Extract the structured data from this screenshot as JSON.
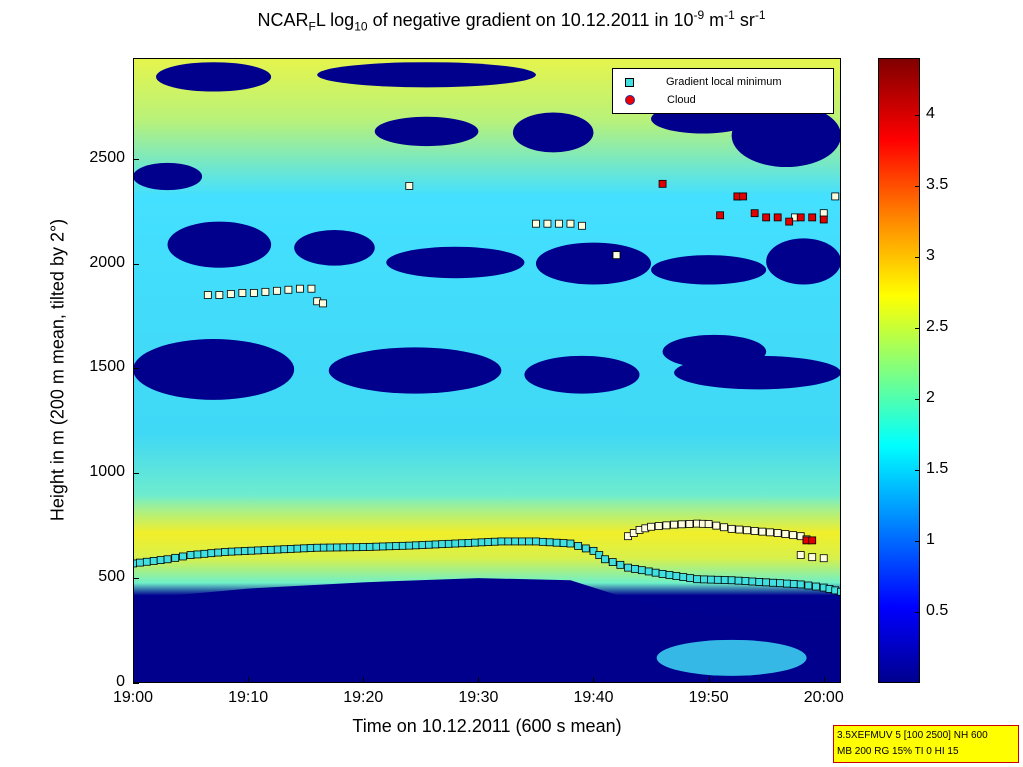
{
  "chart_data": {
    "type": "heatmap",
    "title_parts": {
      "a": "NCAR",
      "a_sub": "F",
      "b": "L log",
      "b_sub": "10",
      "c": " of negative gradient on 10.12.2011 in 10",
      "c_sup": "-9",
      "d": " m",
      "d_sup": "-1",
      "e": " sr",
      "e_sup": "-1"
    },
    "xlabel": "Time on 10.12.2011 (600 s mean)",
    "ylabel": "Height in m (200 m mean, tilted by 2°)",
    "xlim_minutes": [
      0,
      61.5
    ],
    "ylim": [
      0,
      2980
    ],
    "x_ticks": [
      {
        "label": "19:00",
        "minute": 0
      },
      {
        "label": "19:10",
        "minute": 10
      },
      {
        "label": "19:20",
        "minute": 20
      },
      {
        "label": "19:30",
        "minute": 30
      },
      {
        "label": "19:40",
        "minute": 40
      },
      {
        "label": "19:50",
        "minute": 50
      },
      {
        "label": "20:00",
        "minute": 60
      }
    ],
    "y_ticks": [
      "0",
      "500",
      "1000",
      "1500",
      "2000",
      "2500"
    ],
    "y_tick_values": [
      0,
      500,
      1000,
      1500,
      2000,
      2500
    ],
    "colorbar": {
      "range": [
        0,
        4.4
      ],
      "ticks": [
        "0.5",
        "1",
        "1.5",
        "2",
        "2.5",
        "3",
        "3.5",
        "4"
      ],
      "tick_values": [
        0.5,
        1,
        1.5,
        2,
        2.5,
        3,
        3.5,
        4
      ],
      "colors": [
        "#00008f",
        "#0000ff",
        "#0080ff",
        "#00ffff",
        "#80ff80",
        "#ffff00",
        "#ff8000",
        "#ff0000",
        "#800000"
      ]
    },
    "legend": {
      "placement": "top-right",
      "entries": [
        {
          "label": "Gradient local minimum",
          "marker": "square",
          "color": "#40e0e0"
        },
        {
          "label": "Cloud",
          "marker": "circle",
          "color": "#e00000"
        }
      ]
    },
    "low_layer": {
      "points": [
        [
          0,
          570
        ],
        [
          3,
          590
        ],
        [
          5,
          610
        ],
        [
          8,
          625
        ],
        [
          12,
          635
        ],
        [
          16,
          645
        ],
        [
          20,
          648
        ],
        [
          24,
          655
        ],
        [
          28,
          665
        ],
        [
          32,
          675
        ],
        [
          35,
          675
        ],
        [
          38,
          665
        ],
        [
          40,
          630
        ],
        [
          41,
          590
        ],
        [
          43,
          550
        ],
        [
          46,
          520
        ],
        [
          49,
          495
        ],
        [
          52,
          490
        ],
        [
          55,
          480
        ],
        [
          58,
          470
        ],
        [
          60,
          455
        ],
        [
          61.5,
          435
        ]
      ],
      "color": "#40e0e0"
    },
    "upper_layer": {
      "points": [
        [
          43,
          700
        ],
        [
          44,
          730
        ],
        [
          45,
          745
        ],
        [
          47,
          755
        ],
        [
          49,
          760
        ],
        [
          50,
          758
        ],
        [
          52,
          735
        ],
        [
          54,
          725
        ],
        [
          56,
          715
        ],
        [
          58,
          700
        ],
        [
          58.5,
          685
        ]
      ],
      "color": "#ffffe0"
    },
    "lower_branch_points": [
      [
        58,
        610
      ],
      [
        59,
        600
      ],
      [
        60,
        595
      ]
    ],
    "min_points_white": [
      [
        6.5,
        1850
      ],
      [
        7.5,
        1850
      ],
      [
        8.5,
        1855
      ],
      [
        9.5,
        1860
      ],
      [
        10.5,
        1860
      ],
      [
        11.5,
        1865
      ],
      [
        12.5,
        1870
      ],
      [
        13.5,
        1875
      ],
      [
        14.5,
        1880
      ],
      [
        15.5,
        1880
      ],
      [
        16,
        1820
      ],
      [
        16.5,
        1810
      ],
      [
        24,
        2370
      ],
      [
        35,
        2190
      ],
      [
        36,
        2190
      ],
      [
        37,
        2190
      ],
      [
        38,
        2190
      ],
      [
        39,
        2180
      ],
      [
        42,
        2040
      ],
      [
        52.5,
        2320
      ],
      [
        57.5,
        2220
      ],
      [
        60,
        2240
      ],
      [
        61,
        2320
      ]
    ],
    "cloud_points": [
      [
        46,
        2380
      ],
      [
        51,
        2230
      ],
      [
        52.5,
        2320
      ],
      [
        53,
        2320
      ],
      [
        54,
        2240
      ],
      [
        55,
        2220
      ],
      [
        56,
        2220
      ],
      [
        57,
        2200
      ],
      [
        58,
        2220
      ],
      [
        59,
        2220
      ],
      [
        60,
        2210
      ],
      [
        58.5,
        680
      ],
      [
        59,
        680
      ]
    ],
    "clouds_dark_regions": [
      {
        "x0": 2,
        "x1": 12,
        "y0": 2820,
        "y1": 2960
      },
      {
        "x0": 16,
        "x1": 35,
        "y0": 2840,
        "y1": 2960
      },
      {
        "x0": 21,
        "x1": 30,
        "y0": 2560,
        "y1": 2700
      },
      {
        "x0": 33,
        "x1": 40,
        "y0": 2530,
        "y1": 2720
      },
      {
        "x0": 45,
        "x1": 54,
        "y0": 2620,
        "y1": 2760
      },
      {
        "x0": 52,
        "x1": 61.5,
        "y0": 2460,
        "y1": 2760
      },
      {
        "x0": 0,
        "x1": 6,
        "y0": 2350,
        "y1": 2480
      },
      {
        "x0": 3,
        "x1": 12,
        "y0": 1980,
        "y1": 2200
      },
      {
        "x0": 14,
        "x1": 21,
        "y0": 1990,
        "y1": 2160
      },
      {
        "x0": 22,
        "x1": 34,
        "y0": 1930,
        "y1": 2080
      },
      {
        "x0": 35,
        "x1": 45,
        "y0": 1900,
        "y1": 2100
      },
      {
        "x0": 45,
        "x1": 55,
        "y0": 1900,
        "y1": 2040
      },
      {
        "x0": 55,
        "x1": 61.5,
        "y0": 1900,
        "y1": 2120
      },
      {
        "x0": 0,
        "x1": 14,
        "y0": 1350,
        "y1": 1640
      },
      {
        "x0": 17,
        "x1": 32,
        "y0": 1380,
        "y1": 1600
      },
      {
        "x0": 34,
        "x1": 44,
        "y0": 1380,
        "y1": 1560
      },
      {
        "x0": 46,
        "x1": 55,
        "y0": 1500,
        "y1": 1660
      },
      {
        "x0": 47,
        "x1": 61.5,
        "y0": 1400,
        "y1": 1560
      }
    ]
  },
  "info_box": {
    "line1": "3.5XEFMUV 5 [100 2500] NH 600",
    "line2": "MB 200 RG 15% TI 0 HI 15"
  }
}
